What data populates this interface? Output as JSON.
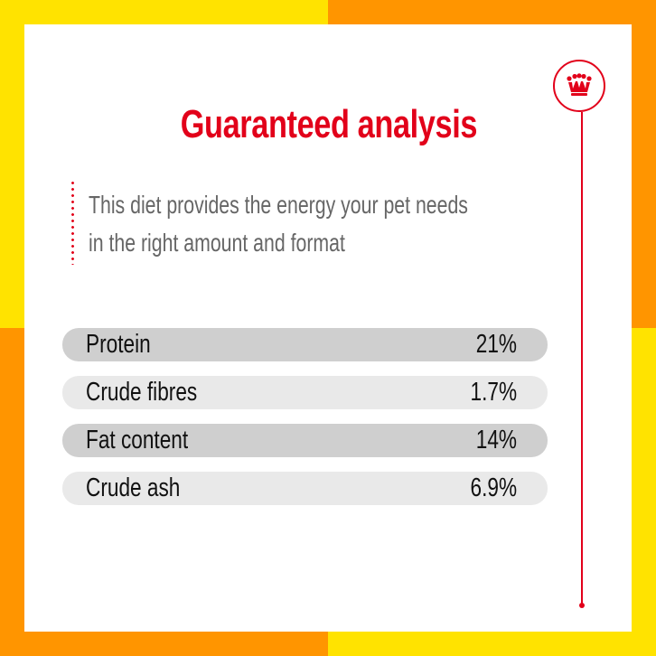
{
  "colors": {
    "yellow": "#FFE300",
    "orange": "#FF9500",
    "accent_red": "#E2001A",
    "card": "#FFFFFF",
    "row_dark": "#CFCFCF",
    "row_light": "#E9E9E9",
    "intro_text": "#666666"
  },
  "header": {
    "title": "Guaranteed analysis",
    "badge_icon": "crown-icon"
  },
  "intro": {
    "lines": [
      "This diet provides the energy your pet needs",
      "in the right amount and format"
    ]
  },
  "analysis": {
    "rows": [
      {
        "label": "Protein",
        "value": "21%"
      },
      {
        "label": "Crude fibres",
        "value": "1.7%"
      },
      {
        "label": "Fat content",
        "value": "14%"
      },
      {
        "label": "Crude ash",
        "value": "6.9%"
      }
    ]
  }
}
